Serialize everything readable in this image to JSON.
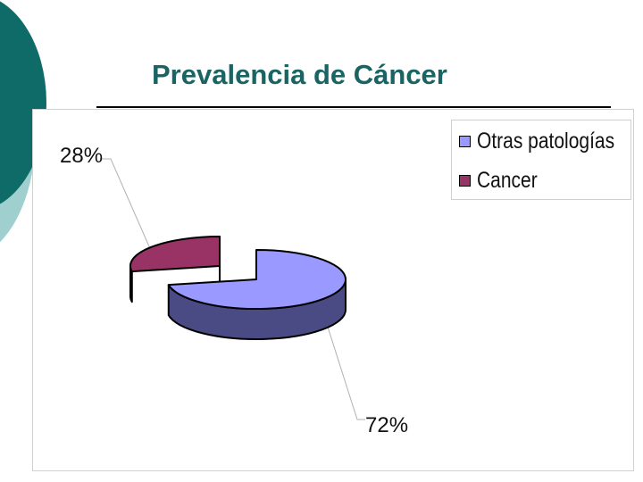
{
  "slide": {
    "title": "Prevalencia de Cáncer",
    "accent_dark": "#0e6b68",
    "accent_light": "#9fcfcf"
  },
  "chart_data": {
    "type": "pie",
    "style": "3d-exploded",
    "title": "",
    "legend_position": "top-right",
    "series": [
      {
        "name": "",
        "slices": [
          {
            "label": "Otras patologías",
            "value": 72,
            "display": "72%",
            "color": "#9999ff",
            "side_color": "#4a4a84"
          },
          {
            "label": "Cancer",
            "value": 28,
            "display": "28%",
            "color": "#993366",
            "side_color": "#4f1c36"
          }
        ]
      }
    ]
  }
}
